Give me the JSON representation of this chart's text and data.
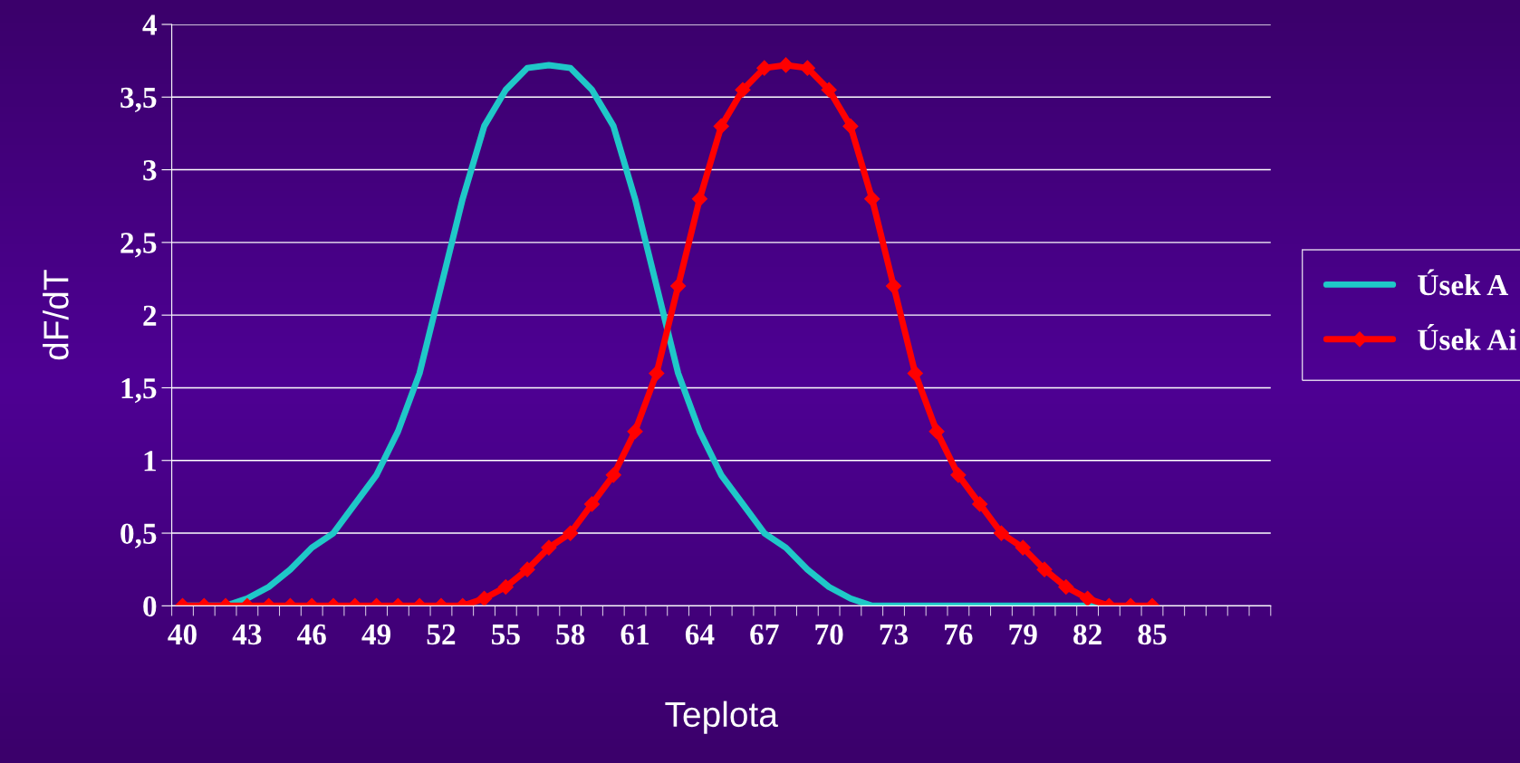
{
  "chart_data": {
    "type": "line",
    "xlabel": "Teplota",
    "ylabel": "dF/dT",
    "categories": [
      "40",
      null,
      null,
      "43",
      null,
      null,
      "46",
      null,
      null,
      "49",
      null,
      null,
      "52",
      null,
      null,
      "55",
      null,
      null,
      "58",
      null,
      null,
      "61",
      null,
      null,
      "64",
      null,
      null,
      "67",
      null,
      null,
      "70",
      null,
      null,
      "73",
      null,
      null,
      "76",
      null,
      null,
      "79",
      null,
      null,
      "82",
      null,
      null,
      "85",
      null,
      null,
      null,
      null,
      null
    ],
    "series": [
      {
        "name": "Úsek A",
        "color": "#1fc8c8",
        "marker": "none",
        "values": [
          0,
          0,
          0,
          0.05,
          0.13,
          0.25,
          0.4,
          0.5,
          0.7,
          0.9,
          1.2,
          1.6,
          2.2,
          2.8,
          3.3,
          3.55,
          3.7,
          3.72,
          3.7,
          3.55,
          3.3,
          2.8,
          2.2,
          1.6,
          1.2,
          0.9,
          0.7,
          0.5,
          0.4,
          0.25,
          0.13,
          0.05,
          0,
          0,
          0,
          0,
          0,
          0,
          0,
          0,
          0,
          0,
          0,
          0,
          null,
          null,
          null,
          null,
          null,
          null,
          null
        ]
      },
      {
        "name": "Úsek Ai",
        "color": "#ff0000",
        "marker": "diamond",
        "values": [
          0,
          0,
          0,
          0,
          0,
          0,
          0,
          0,
          0,
          0,
          0,
          0,
          0,
          0,
          0.05,
          0.13,
          0.25,
          0.4,
          0.5,
          0.7,
          0.9,
          1.2,
          1.6,
          2.2,
          2.8,
          3.3,
          3.55,
          3.7,
          3.72,
          3.7,
          3.55,
          3.3,
          2.8,
          2.2,
          1.6,
          1.2,
          0.9,
          0.7,
          0.5,
          0.4,
          0.25,
          0.13,
          0.05,
          0,
          0,
          0,
          null,
          null,
          null,
          null,
          null
        ]
      }
    ],
    "ylim": [
      0,
      4
    ],
    "yticks": [
      0,
      {
        "value": 0.5,
        "label": "0,5"
      },
      1,
      {
        "value": 1.5,
        "label": "1,5"
      },
      2,
      {
        "value": 2.5,
        "label": "2,5"
      },
      3,
      {
        "value": 3.5,
        "label": "3,5"
      },
      4
    ],
    "grid": "y",
    "legend": "right",
    "line_style": "solid"
  }
}
